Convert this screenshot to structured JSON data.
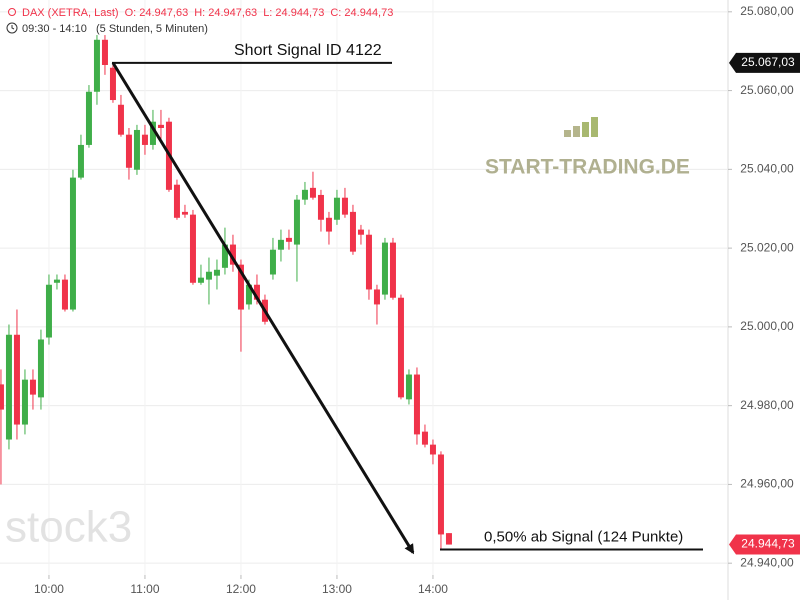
{
  "chart_data": {
    "type": "candlestick",
    "header": {
      "symbol": "DAX (XETRA, Last)",
      "stats": [
        "O: 24.947,63",
        "H: 24.947,63",
        "L: 24.944,73",
        "C: 24.944,73"
      ],
      "range": "09:30 - 14:10",
      "range_note": "(5 Stunden, 5 Minuten)"
    },
    "watermark": "stock3",
    "logo": "START-TRADING.DE",
    "up_color": "#3fae49",
    "down_color": "#f0334a",
    "grid": true,
    "xlim": [
      569.4,
      1024.4
    ],
    "xticks": [
      {
        "value": 600,
        "label": "10:00"
      },
      {
        "value": 660,
        "label": "11:00"
      },
      {
        "value": 720,
        "label": "12:00"
      },
      {
        "value": 780,
        "label": "13:00"
      },
      {
        "value": 840,
        "label": "14:00"
      }
    ],
    "ylim": [
      24937,
      25083
    ],
    "yticks": [
      {
        "value": 24940,
        "label": "24.940,00"
      },
      {
        "value": 24960,
        "label": "24.960,00"
      },
      {
        "value": 24980,
        "label": "24.980,00"
      },
      {
        "value": 25000,
        "label": "25.000,00"
      },
      {
        "value": 25020,
        "label": "25.020,00"
      },
      {
        "value": 25040,
        "label": "25.040,00"
      },
      {
        "value": 25060,
        "label": "25.060,00"
      },
      {
        "value": 25080,
        "label": "25.080,00"
      }
    ],
    "x": [
      570,
      575,
      580,
      585,
      590,
      595,
      600,
      605,
      610,
      615,
      620,
      625,
      630,
      635,
      640,
      645,
      650,
      655,
      660,
      665,
      670,
      675,
      680,
      685,
      690,
      695,
      700,
      705,
      710,
      715,
      720,
      725,
      730,
      735,
      740,
      745,
      750,
      755,
      760,
      765,
      770,
      775,
      780,
      785,
      790,
      795,
      800,
      805,
      810,
      815,
      820,
      825,
      830,
      835,
      840,
      845,
      850
    ],
    "open": [
      24985.4,
      24971.4,
      24998.0,
      24975.2,
      24986.6,
      24982.1,
      24997.3,
      25011.2,
      25012.0,
      25004.4,
      25037.9,
      25046.2,
      25059.7,
      25072.9,
      25065.8,
      25056.4,
      25048.8,
      25039.9,
      25048.8,
      25046.2,
      25051.3,
      25052.1,
      25036.1,
      25029.2,
      25028.5,
      25011.2,
      25012.0,
      25013.0,
      25015.0,
      25020.9,
      25015.8,
      25005.7,
      25010.7,
      25006.9,
      25013.3,
      25019.6,
      25022.6,
      25020.9,
      25032.3,
      25035.3,
      25033.5,
      25027.7,
      25027.2,
      25032.8,
      25029.2,
      25024.7,
      25023.4,
      25009.5,
      25008.2,
      25021.4,
      25007.4,
      24981.6,
      24987.9,
      24973.4,
      24970.1,
      24967.6,
      24947.63
    ],
    "high": [
      24989.2,
      25000.6,
      25004.4,
      24989.2,
      24989.2,
      24999.3,
      25013.3,
      25013.3,
      25013.3,
      25039.9,
      25048.8,
      25061.4,
      25074.1,
      25074.1,
      25067.0,
      25058.9,
      25050.5,
      25051.3,
      25051.3,
      25055.1,
      25055.1,
      25053.1,
      25037.4,
      25031.0,
      25029.7,
      25015.8,
      25017.6,
      25017.1,
      25025.2,
      25023.4,
      25017.1,
      25012.0,
      25013.3,
      25008.2,
      25022.6,
      25024.7,
      25024.7,
      25033.5,
      25036.8,
      25039.4,
      25034.8,
      25029.2,
      25034.8,
      25035.3,
      25031.0,
      25025.9,
      25024.7,
      25010.7,
      25022.6,
      25022.6,
      25008.2,
      24989.2,
      24989.7,
      24975.2,
      24971.4,
      24968.4,
      24947.63
    ],
    "low": [
      24960.0,
      24968.9,
      24971.4,
      24972.7,
      24979.0,
      24979.0,
      24995.5,
      25009.5,
      25003.9,
      25003.9,
      25037.4,
      25045.5,
      25056.4,
      25064.0,
      25056.9,
      25048.3,
      25037.4,
      25038.6,
      25043.7,
      25045.0,
      25047.5,
      25034.3,
      25027.2,
      25027.7,
      25010.7,
      25010.7,
      25005.7,
      25009.5,
      25013.3,
      25014.0,
      24993.7,
      25004.4,
      25005.7,
      25000.6,
      25012.0,
      25016.6,
      25019.6,
      25011.5,
      25031.0,
      25032.3,
      25024.2,
      25020.9,
      25025.9,
      25027.7,
      25018.3,
      25020.9,
      25006.9,
      25000.6,
      25006.9,
      25006.9,
      24981.6,
      24980.3,
      24970.1,
      24969.4,
      24965.1,
      24943.5,
      24944.73
    ],
    "close": [
      24979.0,
      24998.0,
      24975.2,
      24986.6,
      24982.8,
      24996.8,
      25010.7,
      25012.0,
      25004.4,
      25037.9,
      25046.2,
      25059.7,
      25072.9,
      25066.5,
      25057.6,
      25048.8,
      25040.4,
      25050.0,
      25046.2,
      25052.1,
      25050.5,
      25034.8,
      25027.7,
      25028.5,
      25011.2,
      25012.5,
      25014.0,
      25014.5,
      25020.9,
      25015.8,
      25004.4,
      25010.7,
      25006.9,
      25001.3,
      25019.6,
      25022.1,
      25021.6,
      25032.3,
      25034.8,
      25032.8,
      25027.2,
      25024.2,
      25032.8,
      25028.5,
      25019.1,
      25023.4,
      25009.5,
      25005.7,
      25021.4,
      25007.4,
      24982.1,
      24987.9,
      24972.7,
      24970.1,
      24967.6,
      24947.3,
      24944.73
    ],
    "signal": {
      "value": 25067.03,
      "label": "25.067,03",
      "text": "Short Signal  ID 4122",
      "color": "#111111"
    },
    "target": {
      "value": 24944.73,
      "label": "24.944,73",
      "text": "0,50% ab Signal (124  Punkte)",
      "color": "#f0334a"
    }
  }
}
